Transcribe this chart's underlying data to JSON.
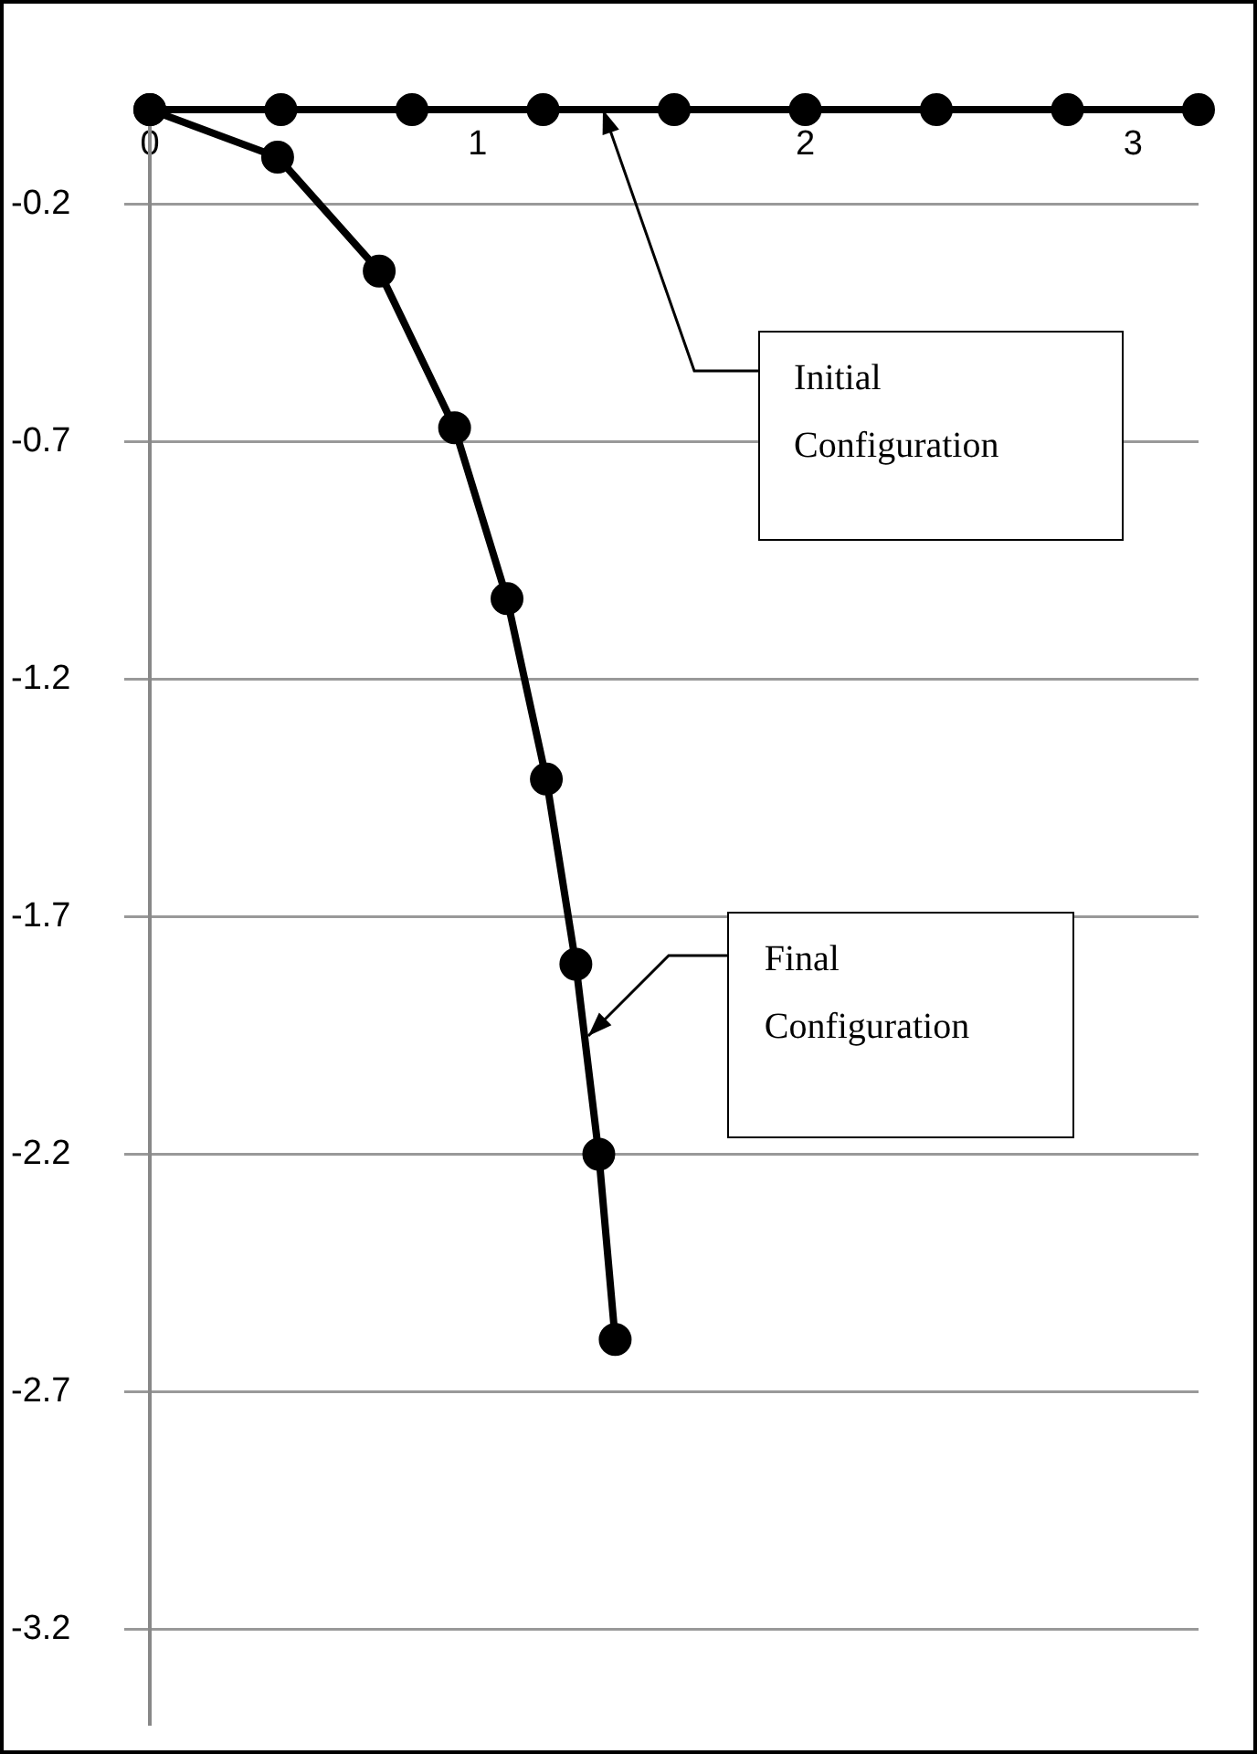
{
  "chart_data": {
    "type": "line",
    "series": [
      {
        "color": "#000000",
        "x": [
          0,
          0.4,
          0.8,
          1.2,
          1.6,
          2.0,
          2.4,
          2.8,
          3.2
        ],
        "values": [
          0,
          0,
          0,
          0,
          0,
          0,
          0,
          0,
          0
        ]
      },
      {
        "color": "#000000",
        "x": [
          0,
          0.39,
          0.7,
          0.93,
          1.09,
          1.21,
          1.3,
          1.37,
          1.42
        ],
        "values": [
          0,
          -0.1,
          -0.34,
          -0.67,
          -1.03,
          -1.41,
          -1.8,
          -2.2,
          -2.59
        ]
      }
    ],
    "xlim": [
      0,
      3.2
    ],
    "xticks": [
      0,
      1,
      2,
      3
    ],
    "ylim": [
      -3.4,
      0
    ],
    "yticks": [
      -0.2,
      -0.7,
      -1.2,
      -1.7,
      -2.2,
      -2.7,
      -3.2
    ],
    "grid": "y",
    "marker": "circle",
    "line_style": "solid",
    "annotations": [
      {
        "text": "Initial Configuration",
        "x": 1.38,
        "y": 0
      },
      {
        "text": "Final Configuration",
        "x": 1.34,
        "y": -1.95
      }
    ]
  }
}
